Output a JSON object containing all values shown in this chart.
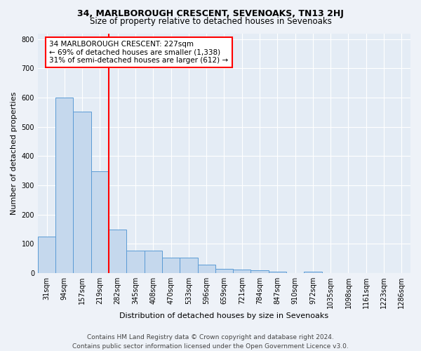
{
  "title": "34, MARLBOROUGH CRESCENT, SEVENOAKS, TN13 2HJ",
  "subtitle": "Size of property relative to detached houses in Sevenoaks",
  "xlabel": "Distribution of detached houses by size in Sevenoaks",
  "ylabel": "Number of detached properties",
  "categories": [
    "31sqm",
    "94sqm",
    "157sqm",
    "219sqm",
    "282sqm",
    "345sqm",
    "408sqm",
    "470sqm",
    "533sqm",
    "596sqm",
    "659sqm",
    "721sqm",
    "784sqm",
    "847sqm",
    "910sqm",
    "972sqm",
    "1035sqm",
    "1098sqm",
    "1161sqm",
    "1223sqm",
    "1286sqm"
  ],
  "values": [
    125,
    600,
    553,
    348,
    150,
    78,
    78,
    52,
    52,
    30,
    15,
    13,
    10,
    5,
    0,
    5,
    0,
    0,
    0,
    0,
    0
  ],
  "bar_color": "#c5d8ed",
  "bar_edge_color": "#5b9bd5",
  "vline_x": 3,
  "annotation_line1": "34 MARLBOROUGH CRESCENT: 227sqm",
  "annotation_line2": "← 69% of detached houses are smaller (1,338)",
  "annotation_line3": "31% of semi-detached houses are larger (612) →",
  "annotation_box_color": "white",
  "annotation_box_edge_color": "red",
  "vline_color": "red",
  "ylim": [
    0,
    820
  ],
  "yticks": [
    0,
    100,
    200,
    300,
    400,
    500,
    600,
    700,
    800
  ],
  "footer_line1": "Contains HM Land Registry data © Crown copyright and database right 2024.",
  "footer_line2": "Contains public sector information licensed under the Open Government Licence v3.0.",
  "bg_color": "#eef2f8",
  "plot_bg_color": "#e4ecf5",
  "grid_color": "white",
  "title_fontsize": 9,
  "subtitle_fontsize": 8.5,
  "label_fontsize": 8,
  "tick_fontsize": 7,
  "footer_fontsize": 6.5,
  "annot_fontsize": 7.5
}
